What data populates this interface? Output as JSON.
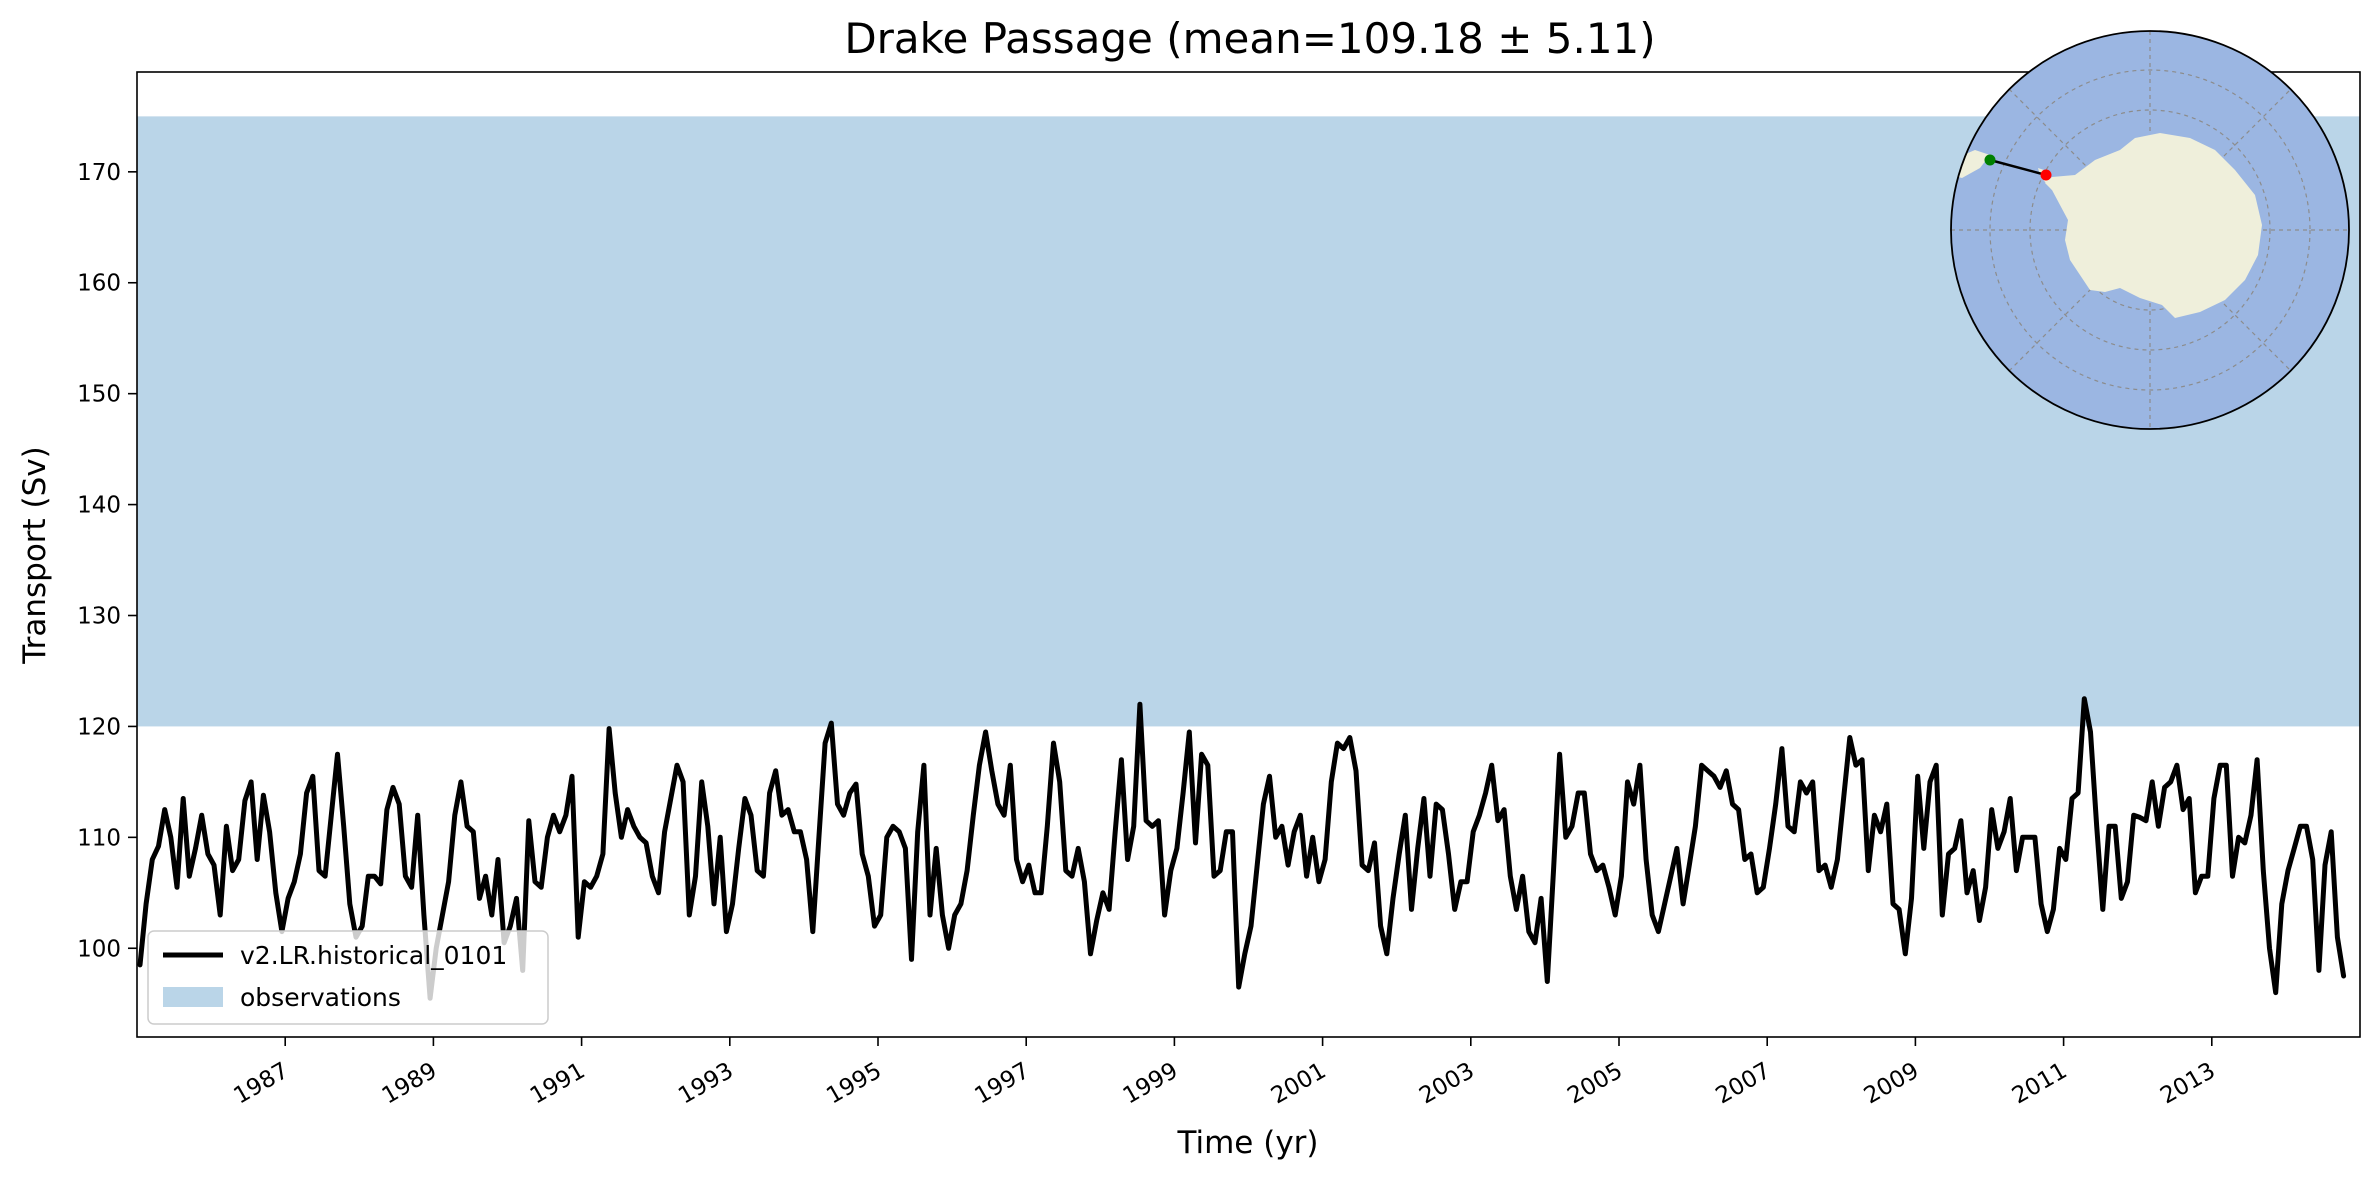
{
  "chart_data": {
    "type": "line",
    "title": "Drake Passage (mean=109.18 ± 5.11)",
    "xlabel": "Time (yr)",
    "ylabel": "Transport (Sv)",
    "xlim": [
      1985.0,
      2015.0
    ],
    "ylim": [
      92.0,
      179.0
    ],
    "y_ticks": [
      100,
      110,
      120,
      130,
      140,
      150,
      160,
      170
    ],
    "x_ticks": [
      1987,
      1989,
      1991,
      1993,
      1995,
      1997,
      1999,
      2001,
      2003,
      2005,
      2007,
      2009,
      2011,
      2013
    ],
    "grid": false,
    "legend_position": "lower-left",
    "observations": {
      "name": "observations",
      "range": [
        120,
        175
      ],
      "color": "#bad5e8"
    },
    "series": [
      {
        "name": "v2.LR.historical_0101",
        "color": "#000000",
        "x_start": 1985.04,
        "x_step": 0.0833,
        "values": [
          98.5,
          104,
          108,
          109.2,
          112.5,
          110,
          105.5,
          113.5,
          106.5,
          109,
          112,
          108.5,
          107.5,
          103,
          111,
          107,
          108,
          113.3,
          115,
          108,
          113.8,
          110.5,
          105,
          101.5,
          104.5,
          106,
          108.5,
          114,
          115.5,
          107,
          106.5,
          112,
          117.5,
          111,
          104,
          101,
          102,
          106.5,
          106.5,
          105.8,
          112.5,
          114.5,
          113,
          106.5,
          105.5,
          112,
          103,
          95.5,
          100,
          103,
          106,
          112,
          115,
          111,
          110.5,
          104.5,
          106.5,
          103,
          108,
          100.5,
          102,
          104.5,
          98,
          111.5,
          106,
          105.5,
          110,
          112,
          110.5,
          112,
          115.5,
          101,
          106,
          105.5,
          106.5,
          108.5,
          119.8,
          114,
          110,
          112.5,
          111,
          110,
          109.5,
          106.5,
          105,
          110.5,
          113.5,
          116.5,
          115,
          103,
          106.5,
          115,
          111,
          104,
          110,
          101.5,
          104,
          109,
          113.5,
          112,
          107,
          106.5,
          114,
          116,
          112,
          112.5,
          110.5,
          110.5,
          108,
          101.5,
          110,
          118.5,
          120.3,
          113,
          112,
          114,
          114.8,
          108.5,
          106.5,
          102,
          103,
          110,
          111,
          110.5,
          109,
          99,
          110.5,
          116.5,
          103,
          109,
          103,
          100,
          103,
          104,
          107,
          112,
          116.5,
          119.5,
          116,
          113,
          112,
          116.5,
          108,
          106,
          107.5,
          105,
          105,
          111,
          118.5,
          115,
          107,
          106.5,
          109,
          106,
          99.5,
          102.5,
          105,
          103.5,
          110.5,
          117,
          108,
          111,
          122,
          111.5,
          111,
          111.5,
          103,
          107,
          109,
          114,
          119.5,
          109.5,
          117.5,
          116.5,
          106.5,
          107,
          110.5,
          110.5,
          96.5,
          99.5,
          102,
          107.5,
          113,
          115.5,
          110,
          111,
          107.5,
          110.5,
          112,
          106.5,
          110,
          106,
          108,
          115,
          118.5,
          118,
          119,
          116,
          107.5,
          107,
          109.5,
          102,
          99.5,
          104.5,
          108.5,
          112,
          103.5,
          109,
          113.5,
          106.5,
          113,
          112.5,
          108.5,
          103.5,
          106,
          106,
          110.5,
          112,
          114,
          116.5,
          111.5,
          112.5,
          106.5,
          103.5,
          106.5,
          101.5,
          100.5,
          104.5,
          97,
          107,
          117.5,
          110,
          111,
          114,
          114,
          108.5,
          107,
          107.5,
          105.5,
          103,
          106.5,
          115,
          113,
          116.5,
          108,
          103,
          101.5,
          104,
          106.5,
          109,
          104,
          107.5,
          111,
          116.5,
          116,
          115.5,
          114.5,
          116,
          113,
          112.5,
          108,
          108.5,
          105,
          105.5,
          109,
          113,
          118,
          111,
          110.5,
          115,
          114,
          115,
          107,
          107.5,
          105.5,
          108,
          113.5,
          119,
          116.5,
          117,
          107,
          112,
          110.5,
          113,
          104,
          103.5,
          99.5,
          104.5,
          115.5,
          109,
          115,
          116.5,
          103,
          108.5,
          109,
          111.5,
          105,
          107,
          102.5,
          105.5,
          112.5,
          109,
          110.5,
          113.5,
          107,
          110,
          110,
          110,
          104,
          101.5,
          103.5,
          109,
          108,
          113.5,
          114,
          122.5,
          119.5,
          111,
          103.5,
          111,
          111,
          104.5,
          106,
          112,
          111.8,
          111.5,
          115,
          111,
          114.5,
          115,
          116.5,
          112.5,
          113.5,
          105,
          106.5,
          106.5,
          113.5,
          116.5,
          116.5,
          106.5,
          110,
          109.5,
          112,
          117,
          107,
          100,
          96,
          104,
          107,
          109,
          111,
          111,
          108,
          98,
          107.5,
          110.5,
          101,
          97.5
        ]
      }
    ]
  },
  "map_inset": {
    "ocean_color": "#9bb6e2",
    "land_color": "#efefdb",
    "start_point_color": "#008000",
    "end_point_color": "#ff0000"
  }
}
